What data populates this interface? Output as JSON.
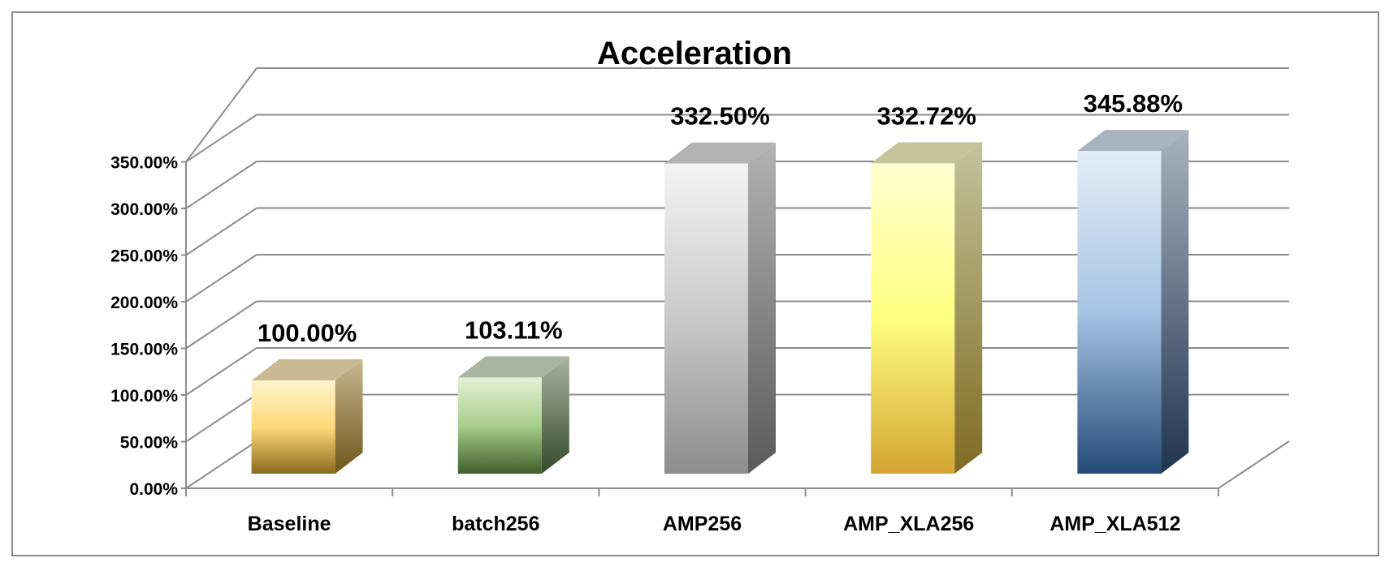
{
  "chart_data": {
    "type": "bar",
    "title": "Acceleration",
    "xlabel": "",
    "ylabel": "",
    "categories": [
      "Baseline",
      "batch256",
      "AMP256",
      "AMP_XLA256",
      "AMP_XLA512"
    ],
    "values": [
      100.0,
      103.11,
      332.5,
      332.72,
      345.88
    ],
    "data_labels": [
      "100.00%",
      "103.11%",
      "332.50%",
      "332.72%",
      "345.88%"
    ],
    "ylim": [
      0,
      350
    ],
    "y_ticks": [
      0,
      50,
      100,
      150,
      200,
      250,
      300,
      350
    ],
    "y_tick_labels": [
      "0.00%",
      "50.00%",
      "100.00%",
      "150.00%",
      "200.00%",
      "250.00%",
      "300.00%",
      "350.00%"
    ],
    "grid": true,
    "legend": "none",
    "style": "3d-column",
    "bar_colors": [
      {
        "top": "#fff5cc",
        "mid": "#ffd97a",
        "bottom": "#8c6a1e",
        "side": "#6e5518",
        "cap": "#c9b993"
      },
      {
        "top": "#e3f1d6",
        "mid": "#a8cf8c",
        "bottom": "#3f5e2a",
        "side": "#34492a",
        "cap": "#a9b59e"
      },
      {
        "top": "#f4f4f4",
        "mid": "#c9c9c9",
        "bottom": "#8d8d8d",
        "side": "#5a5a5a",
        "cap": "#b3b3b3"
      },
      {
        "top": "#ffffd0",
        "mid": "#ffff80",
        "bottom": "#d3a533",
        "side": "#7f6a22",
        "cap": "#c4c39a"
      },
      {
        "top": "#e2ecf8",
        "mid": "#a6c4e4",
        "bottom": "#254a78",
        "side": "#1f344f",
        "cap": "#a8b3c0"
      }
    ]
  }
}
